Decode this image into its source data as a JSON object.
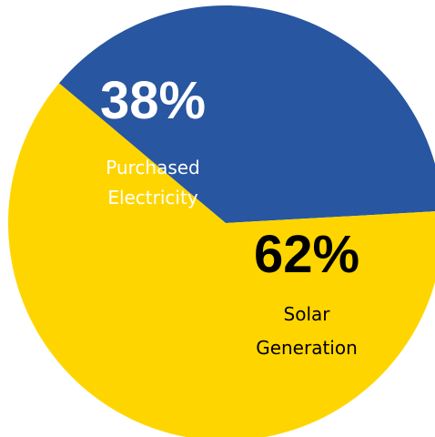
{
  "chart_data": {
    "type": "pie",
    "title": "",
    "categories": [
      "Purchased Electricity",
      "Solar Generation"
    ],
    "values": [
      38,
      62
    ],
    "value_labels": [
      "38%",
      "62%"
    ],
    "label_lines": [
      [
        "Purchased",
        "Electricity"
      ],
      [
        "Solar",
        "Generation"
      ]
    ],
    "colors": [
      "#2856a0",
      "#ffd500"
    ],
    "label_colors": [
      "#ffffff",
      "#000000"
    ],
    "legend": "none",
    "grid": false
  }
}
